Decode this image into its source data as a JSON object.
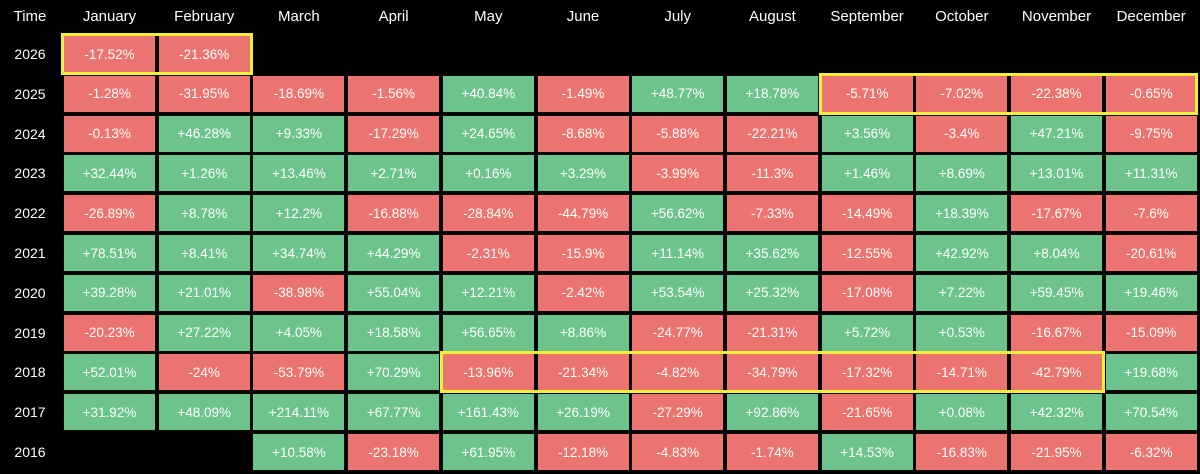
{
  "header": {
    "time_label": "Time",
    "months": [
      "January",
      "February",
      "March",
      "April",
      "May",
      "June",
      "July",
      "August",
      "September",
      "October",
      "November",
      "December"
    ]
  },
  "colors": {
    "positive": "#6cc38c",
    "negative": "#ec7470",
    "highlight": "#f4ef3d",
    "background": "#000000"
  },
  "rows": [
    {
      "year": "2026",
      "values": [
        "-17.52%",
        "-21.36%",
        null,
        null,
        null,
        null,
        null,
        null,
        null,
        null,
        null,
        null
      ]
    },
    {
      "year": "2025",
      "values": [
        "-1.28%",
        "-31.95%",
        "-18.69%",
        "-1.56%",
        "+40.84%",
        "-1.49%",
        "+48.77%",
        "+18.78%",
        "-5.71%",
        "-7.02%",
        "-22.38%",
        "-0.65%"
      ]
    },
    {
      "year": "2024",
      "values": [
        "-0.13%",
        "+46.28%",
        "+9.33%",
        "-17.29%",
        "+24.65%",
        "-8.68%",
        "-5.88%",
        "-22.21%",
        "+3.56%",
        "-3.4%",
        "+47.21%",
        "-9.75%"
      ]
    },
    {
      "year": "2023",
      "values": [
        "+32.44%",
        "+1.26%",
        "+13.46%",
        "+2.71%",
        "+0.16%",
        "+3.29%",
        "-3.99%",
        "-11.3%",
        "+1.46%",
        "+8.69%",
        "+13.01%",
        "+11.31%"
      ]
    },
    {
      "year": "2022",
      "values": [
        "-26.89%",
        "+8.78%",
        "+12.2%",
        "-16.88%",
        "-28.84%",
        "-44.79%",
        "+56.62%",
        "-7.33%",
        "-14.49%",
        "+18.39%",
        "-17.67%",
        "-7.6%"
      ]
    },
    {
      "year": "2021",
      "values": [
        "+78.51%",
        "+8.41%",
        "+34.74%",
        "+44.29%",
        "-2.31%",
        "-15.9%",
        "+11.14%",
        "+35.62%",
        "-12.55%",
        "+42.92%",
        "+8.04%",
        "-20.61%"
      ]
    },
    {
      "year": "2020",
      "values": [
        "+39.28%",
        "+21.01%",
        "-38.98%",
        "+55.04%",
        "+12.21%",
        "-2.42%",
        "+53.54%",
        "+25.32%",
        "-17.08%",
        "+7.22%",
        "+59.45%",
        "+19.46%"
      ]
    },
    {
      "year": "2019",
      "values": [
        "-20.23%",
        "+27.22%",
        "+4.05%",
        "+18.58%",
        "+56.65%",
        "+8.86%",
        "-24.77%",
        "-21.31%",
        "+5.72%",
        "+0.53%",
        "-16.67%",
        "-15.09%"
      ]
    },
    {
      "year": "2018",
      "values": [
        "+52.01%",
        "-24%",
        "-53.79%",
        "+70.29%",
        "-13.96%",
        "-21.34%",
        "-4.82%",
        "-34.79%",
        "-17.32%",
        "-14.71%",
        "-42.79%",
        "+19.68%"
      ]
    },
    {
      "year": "2017",
      "values": [
        "+31.92%",
        "+48.09%",
        "+214.11%",
        "+67.77%",
        "+161.43%",
        "+26.19%",
        "-27.29%",
        "+92.86%",
        "-21.65%",
        "+0.08%",
        "+42.32%",
        "+70.54%"
      ]
    },
    {
      "year": "2016",
      "values": [
        null,
        null,
        "+10.58%",
        "-23.18%",
        "+61.95%",
        "-12.18%",
        "-4.83%",
        "-1.74%",
        "+14.53%",
        "-16.83%",
        "-21.95%",
        "-6.32%"
      ]
    }
  ],
  "highlights": [
    {
      "year": "2026",
      "from_month": "January",
      "to_month": "February"
    },
    {
      "year": "2025",
      "from_month": "September",
      "to_month": "December"
    },
    {
      "year": "2018",
      "from_month": "May",
      "to_month": "November"
    }
  ]
}
